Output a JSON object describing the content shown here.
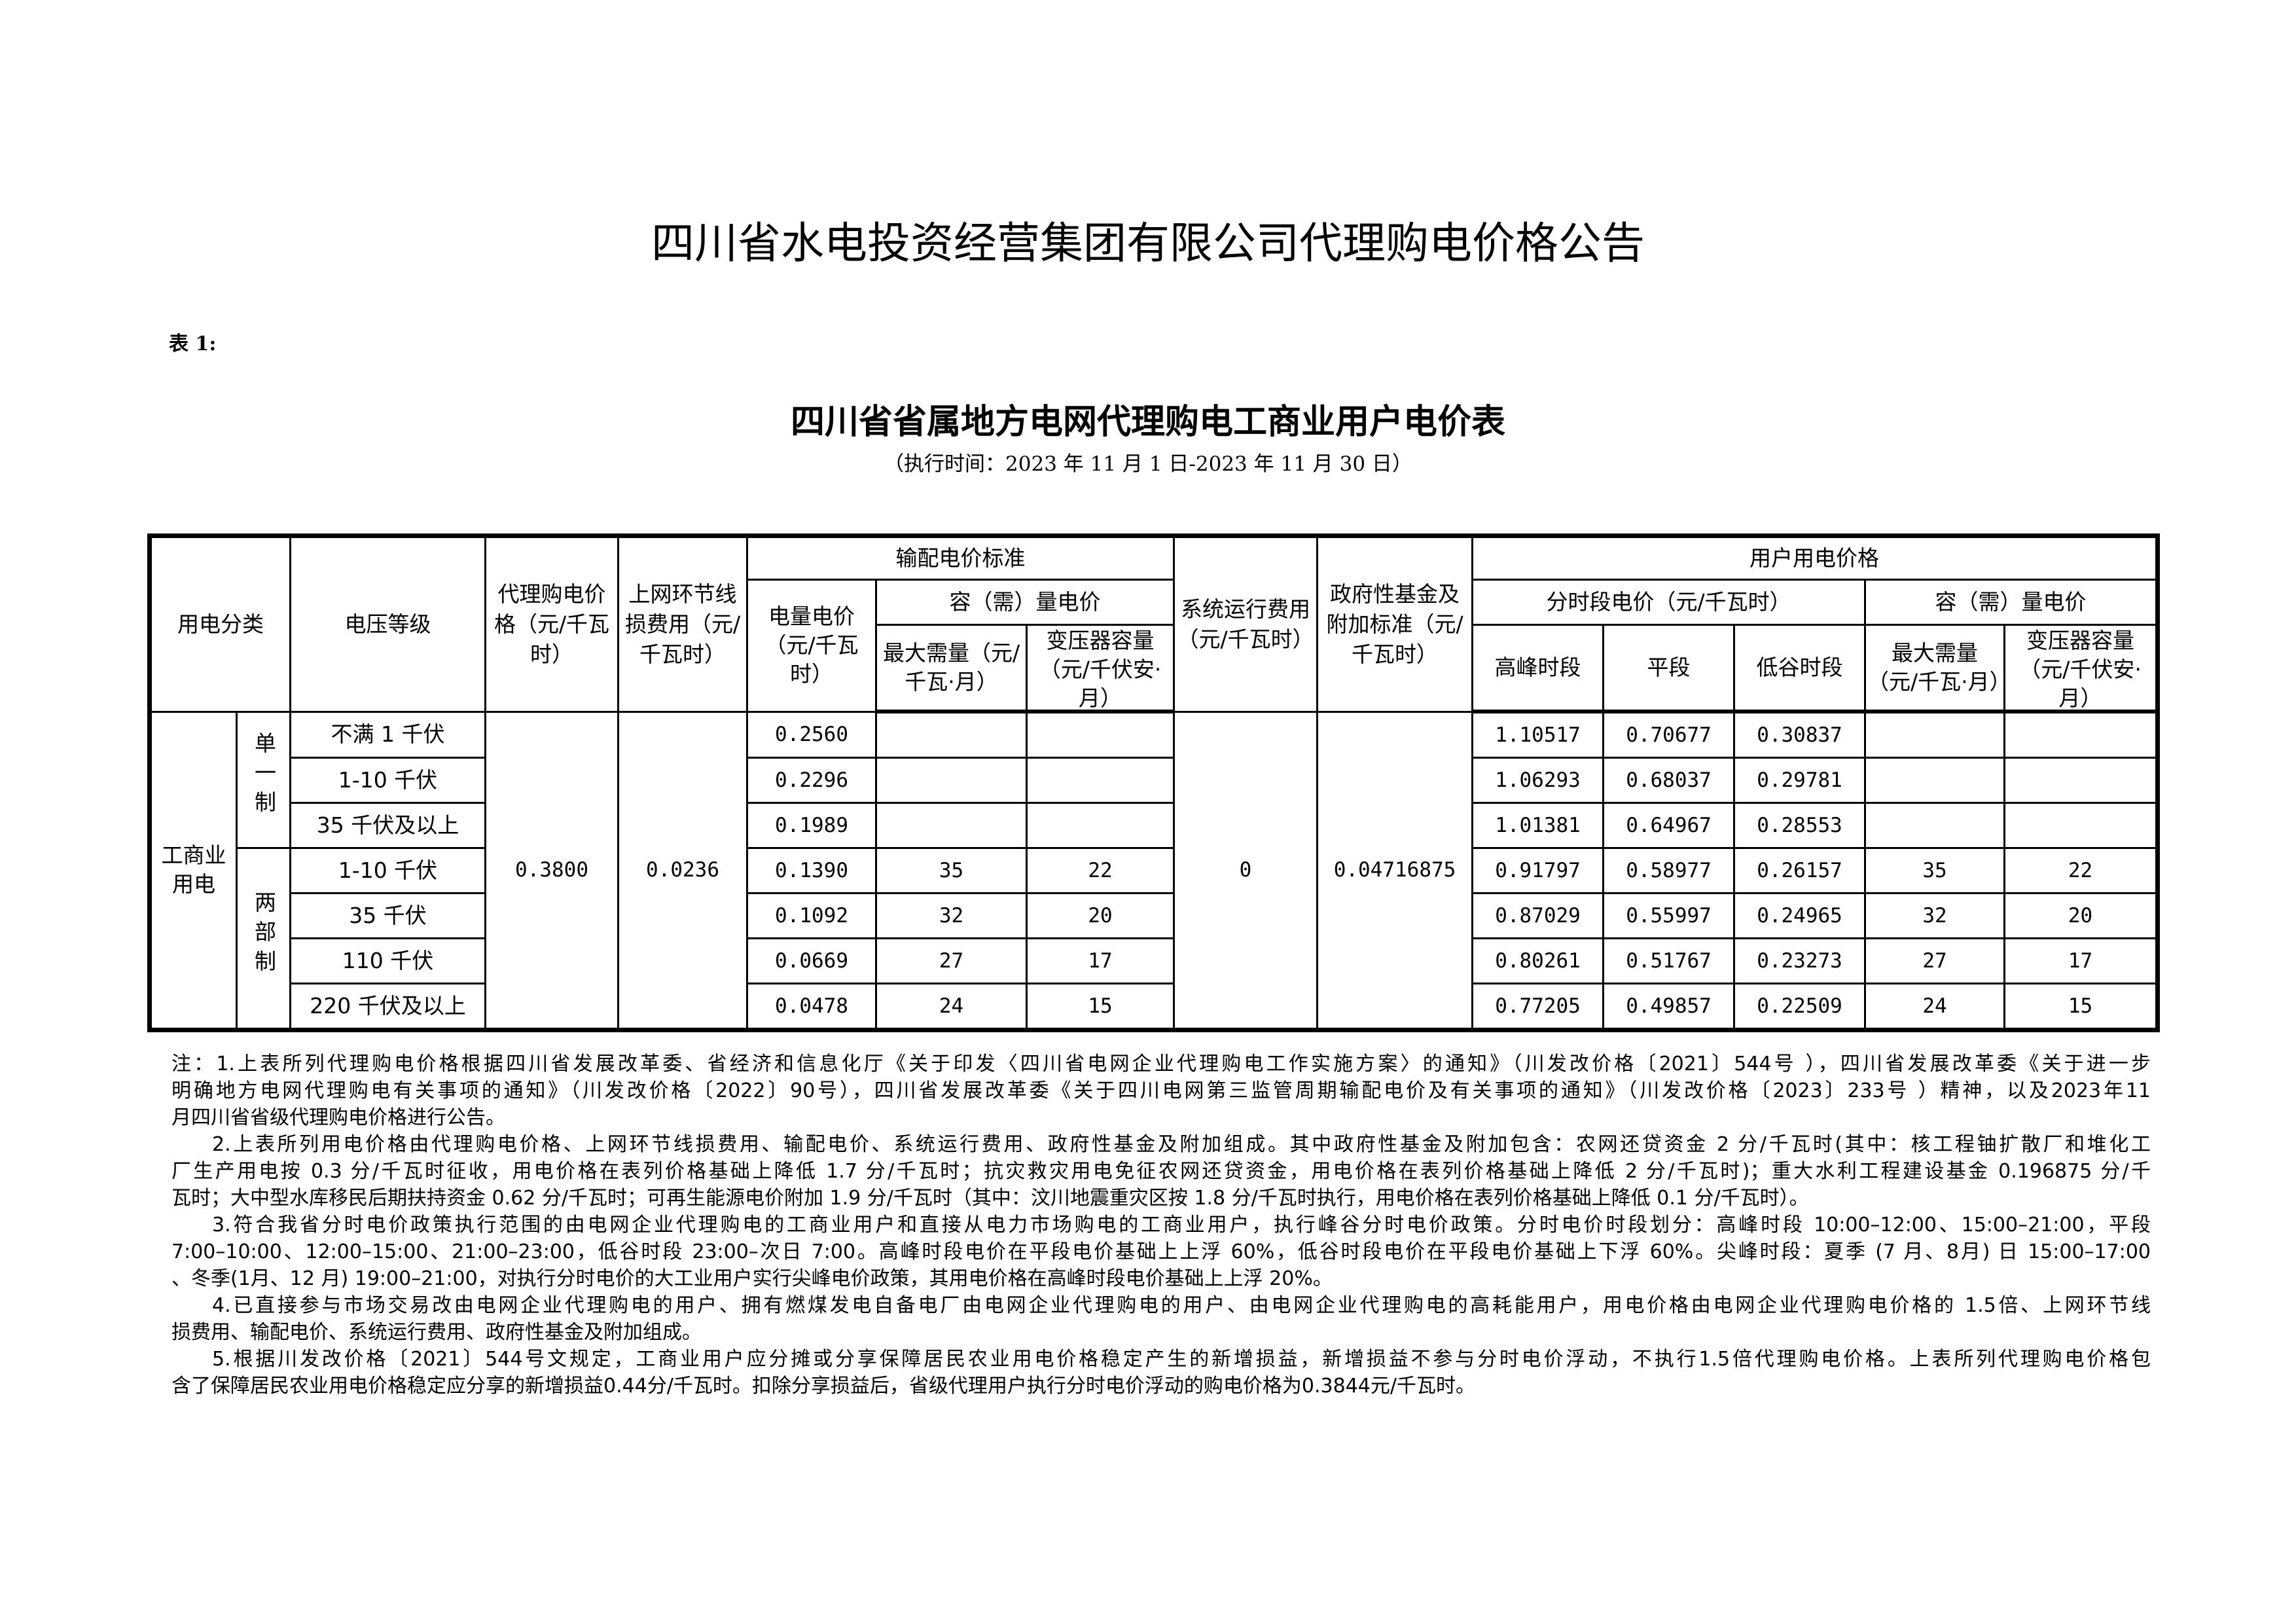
{
  "title": "四川省水电投资经营集团有限公司代理购电价格公告",
  "table_no": "表 1:",
  "subtitle": "四川省省属地方电网代理购电工商业用户电价表",
  "period": "（执行时间：2023 年 11 月 1 日-2023 年 11 月 30 日）",
  "table": {
    "headers": {
      "category": "用电分类",
      "voltage": "电压等级",
      "agency_price": "代理购电价格（元/千瓦时）",
      "line_loss": "上网环节线损费用（元/千瓦时）",
      "tnd_group": "输配电价标准",
      "energy_price": "电量电价（元/千瓦时）",
      "capacity_group": "容（需）量电价",
      "max_demand": "最大需量（元/千瓦·月）",
      "transformer": "变压器容量（元/千伏安·月）",
      "system_cost": "系统运行费用（元/千瓦时）",
      "gov_fund": "政府性基金及附加标准（元/千瓦时）",
      "user_group": "用户用电价格",
      "tou_group": "分时段电价（元/千瓦时）",
      "user_capacity_group": "容（需）量电价",
      "peak": "高峰时段",
      "flat": "平段",
      "valley": "低谷时段",
      "user_max_demand": "最大需量（元/千瓦·月）",
      "user_transformer": "变压器容量（元/千伏安·月）"
    },
    "category": "工商业用电",
    "subcategories": [
      "单一制",
      "两部制"
    ],
    "agency_price": "0.3800",
    "line_loss": "0.0236",
    "system_cost": "0",
    "gov_fund": "0.04716875",
    "rows": [
      {
        "voltage": "不满 1 千伏",
        "energy": "0.2560",
        "max_demand": "",
        "transformer": "",
        "peak": "1.10517",
        "flat": "0.70677",
        "valley": "0.30837",
        "u_max_demand": "",
        "u_transformer": ""
      },
      {
        "voltage": "1-10 千伏",
        "energy": "0.2296",
        "max_demand": "",
        "transformer": "",
        "peak": "1.06293",
        "flat": "0.68037",
        "valley": "0.29781",
        "u_max_demand": "",
        "u_transformer": ""
      },
      {
        "voltage": "35 千伏及以上",
        "energy": "0.1989",
        "max_demand": "",
        "transformer": "",
        "peak": "1.01381",
        "flat": "0.64967",
        "valley": "0.28553",
        "u_max_demand": "",
        "u_transformer": ""
      },
      {
        "voltage": "1-10 千伏",
        "energy": "0.1390",
        "max_demand": "35",
        "transformer": "22",
        "peak": "0.91797",
        "flat": "0.58977",
        "valley": "0.26157",
        "u_max_demand": "35",
        "u_transformer": "22"
      },
      {
        "voltage": "35 千伏",
        "energy": "0.1092",
        "max_demand": "32",
        "transformer": "20",
        "peak": "0.87029",
        "flat": "0.55997",
        "valley": "0.24965",
        "u_max_demand": "32",
        "u_transformer": "20"
      },
      {
        "voltage": "110 千伏",
        "energy": "0.0669",
        "max_demand": "27",
        "transformer": "17",
        "peak": "0.80261",
        "flat": "0.51767",
        "valley": "0.23273",
        "u_max_demand": "27",
        "u_transformer": "17"
      },
      {
        "voltage": "220 千伏及以上",
        "energy": "0.0478",
        "max_demand": "24",
        "transformer": "15",
        "peak": "0.77205",
        "flat": "0.49857",
        "valley": "0.22509",
        "u_max_demand": "24",
        "u_transformer": "15"
      }
    ]
  },
  "notes": [
    [
      "注：1.上表所列代理购电价格根据四川省发展改革委、省经济和信息化厅《关于印发〈四川省电网企业代理购电工作实施方案〉的通知》（川发改价格〔2021〕544号 ），四川省发展改革委《关于进一步",
      "明确地方电网代理购电有关事项的通知》（川发改价格〔2022〕90号），四川省发展改革委《关于四川电网第三监管周期输配电价及有关事项的通知》（川发改价格〔2023〕233号 ）精神，以及2023年11",
      "月四川省省级代理购电价格进行公告。"
    ],
    [
      "2.上表所列用电价格由代理购电价格、上网环节线损费用、输配电价、系统运行费用、政府性基金及附加组成。其中政府性基金及附加包含：农网还贷资金 2 分/千瓦时(其中：核工程铀扩散厂和堆化工",
      "厂生产用电按 0.3 分/千瓦时征收，用电价格在表列价格基础上降低 1.7 分/千瓦时；抗灾救灾用电免征农网还贷资金，用电价格在表列价格基础上降低 2 分/千瓦时)；重大水利工程建设基金 0.196875 分/千",
      "瓦时；大中型水库移民后期扶持资金 0.62 分/千瓦时；可再生能源电价附加 1.9 分/千瓦时（其中：汶川地震重灾区按 1.8 分/千瓦时执行，用电价格在表列价格基础上降低 0.1 分/千瓦时）。"
    ],
    [
      "3.符合我省分时电价政策执行范围的由电网企业代理购电的工商业用户和直接从电力市场购电的工商业用户，执行峰谷分时电价政策。分时电价时段划分：高峰时段 10:00–12:00、15:00–21:00，平段",
      "7:00–10:00、12:00–15:00、21:00–23:00，低谷时段 23:00–次日 7:00。高峰时段电价在平段电价基础上上浮 60%，低谷时段电价在平段电价基础上下浮 60%。尖峰时段：夏季 (7 月、8月) 日 15:00–17:00",
      "、冬季(1月、12 月) 19:00–21:00，对执行分时电价的大工业用户实行尖峰电价政策，其用电价格在高峰时段电价基础上上浮 20%。"
    ],
    [
      "4.已直接参与市场交易改由电网企业代理购电的用户、拥有燃煤发电自备电厂由电网企业代理购电的用户、由电网企业代理购电的高耗能用户，用电价格由电网企业代理购电价格的 1.5倍、上网环节线",
      "损费用、输配电价、系统运行费用、政府性基金及附加组成。"
    ],
    [
      "5.根据川发改价格〔2021〕544号文规定，工商业用户应分摊或分享保障居民农业用电价格稳定产生的新增损益，新增损益不参与分时电价浮动，不执行1.5倍代理购电价格。上表所列代理购电价格包",
      "含了保障居民农业用电价格稳定应分享的新增损益0.44分/千瓦时。扣除分享损益后，省级代理用户执行分时电价浮动的购电价格为0.3844元/千瓦时。"
    ]
  ]
}
